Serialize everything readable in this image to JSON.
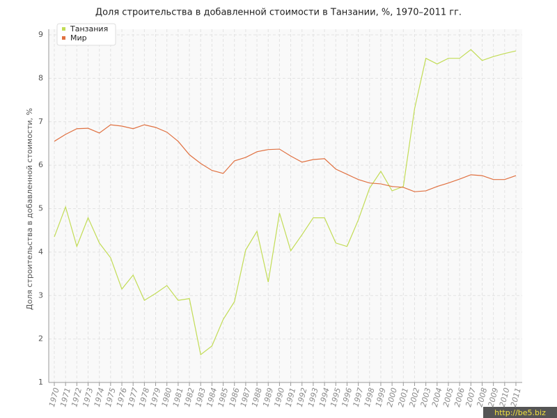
{
  "chart_data": {
    "type": "line",
    "title": "Доля строительства в добавленной стоимости в Танзании, %, 1970–2011 гг.",
    "y_label": "Доля строительства в добавленной стоимости, %",
    "categories": [
      "1970",
      "1971",
      "1972",
      "1973",
      "1974",
      "1975",
      "1976",
      "1977",
      "1978",
      "1979",
      "1980",
      "1981",
      "1982",
      "1983",
      "1984",
      "1985",
      "1986",
      "1987",
      "1988",
      "1989",
      "1990",
      "1991",
      "1992",
      "1993",
      "1994",
      "1995",
      "1996",
      "1997",
      "1998",
      "1999",
      "2000",
      "2001",
      "2002",
      "2003",
      "2004",
      "2005",
      "2006",
      "2007",
      "2008",
      "2009",
      "2010",
      "2011"
    ],
    "series": [
      {
        "name": "Танзания",
        "color": "#c2dc55",
        "values": [
          4.35,
          5.04,
          4.13,
          4.79,
          4.21,
          3.87,
          3.15,
          3.47,
          2.89,
          3.05,
          3.23,
          2.89,
          2.93,
          1.64,
          1.84,
          2.45,
          2.86,
          4.05,
          4.48,
          3.31,
          4.9,
          4.03,
          4.4,
          4.79,
          4.79,
          4.21,
          4.13,
          4.74,
          5.47,
          5.86,
          5.41,
          5.51,
          7.3,
          8.46,
          8.33,
          8.46,
          8.46,
          8.66,
          8.41,
          8.5,
          8.57,
          8.63
        ]
      },
      {
        "name": "Мир",
        "color": "#e07040",
        "values": [
          6.55,
          6.71,
          6.84,
          6.85,
          6.74,
          6.93,
          6.9,
          6.84,
          6.93,
          6.87,
          6.76,
          6.55,
          6.24,
          6.04,
          5.88,
          5.81,
          6.1,
          6.18,
          6.31,
          6.36,
          6.37,
          6.21,
          6.07,
          6.13,
          6.15,
          5.91,
          5.79,
          5.67,
          5.59,
          5.57,
          5.51,
          5.49,
          5.39,
          5.41,
          5.51,
          5.59,
          5.68,
          5.78,
          5.76,
          5.67,
          5.67,
          5.76
        ]
      }
    ],
    "ylim": [
      1,
      9
    ],
    "yticks": [
      1,
      2,
      3,
      4,
      5,
      6,
      7,
      8,
      9
    ],
    "grid": true,
    "legend": "top-left",
    "watermark": "http://be5.biz"
  }
}
